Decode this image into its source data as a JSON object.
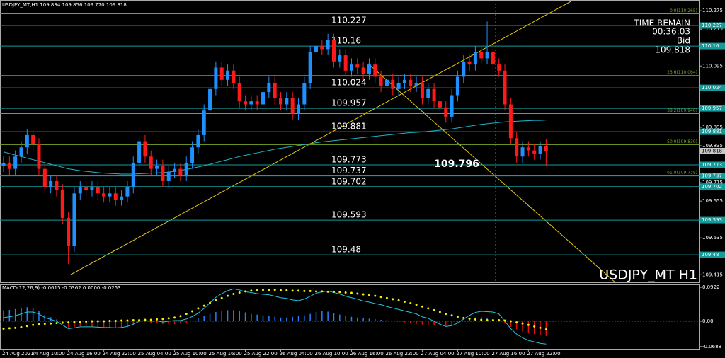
{
  "chart_data": {
    "type": "candlestick",
    "header": "USDJPY_MT,H1  109.834 109.856 109.770 109.818",
    "timer_title": "TIME REMAIN",
    "timer": "00:36:03",
    "bid_title": "Bid",
    "bid": 109.818,
    "symbol_label": "USDJPY_MT H1",
    "price_label": 109.796,
    "up_color": "#1e90ff",
    "down_color": "#ff1a1a",
    "categories": [
      "24 Aug 2021",
      null,
      null,
      null,
      null,
      "24 Aug 10:00",
      null,
      null,
      null,
      null,
      null,
      "24 Aug 16:00",
      null,
      null,
      null,
      null,
      null,
      "24 Aug 22:00",
      null,
      null,
      null,
      null,
      null,
      "25 Aug 04:00",
      null,
      null,
      null,
      null,
      null,
      "25 Aug 10:00",
      null,
      null,
      null,
      null,
      null,
      "25 Aug 16:00",
      null,
      null,
      null,
      null,
      null,
      "25 Aug 22:00",
      null,
      null,
      null,
      null,
      null,
      "26 Aug 04:00",
      null,
      null,
      null,
      null,
      null,
      "26 Aug 10:00",
      null,
      null,
      null,
      null,
      null,
      "26 Aug 16:00",
      null,
      null,
      null,
      null,
      null,
      "26 Aug 22:00",
      null,
      null,
      null,
      null,
      null,
      "27 Aug 04:00",
      null,
      null,
      null,
      null,
      null,
      "27 Aug 10:00",
      null,
      null,
      null,
      null,
      null,
      "27 Aug 16:00",
      null,
      null,
      null,
      null,
      null,
      "27 Aug 22:00",
      null,
      null,
      null
    ],
    "open": [
      109.77,
      109.78,
      109.76,
      109.8,
      109.83,
      109.87,
      109.84,
      109.76,
      109.7,
      109.72,
      109.69,
      109.6,
      109.51,
      109.68,
      109.7,
      109.69,
      109.7,
      109.68,
      109.67,
      109.68,
      109.66,
      109.67,
      109.7,
      109.78,
      109.85,
      109.8,
      109.76,
      109.77,
      109.72,
      109.75,
      109.76,
      109.74,
      109.78,
      109.83,
      109.87,
      109.95,
      110.02,
      110.09,
      110.05,
      110.08,
      110.04,
      109.98,
      109.97,
      109.98,
      109.97,
      110.01,
      110.04,
      109.99,
      109.97,
      109.99,
      109.94,
      109.97,
      110.04,
      110.14,
      110.16,
      110.15,
      110.18,
      110.11,
      110.13,
      110.08,
      110.1,
      110.09,
      110.07,
      110.1,
      110.06,
      110.03,
      110.05,
      110.02,
      110.04,
      110.05,
      110.03,
      110.04,
      109.99,
      110.02,
      109.98,
      109.96,
      109.93,
      110.0,
      110.06,
      110.11,
      110.1,
      110.14,
      110.12,
      110.14,
      110.1,
      110.08,
      109.97,
      109.86,
      109.8,
      109.83,
      109.82,
      109.81,
      109.834
    ],
    "high": [
      109.8,
      109.8,
      109.82,
      109.85,
      109.89,
      109.89,
      109.86,
      109.78,
      109.74,
      109.74,
      109.71,
      109.62,
      109.7,
      109.72,
      109.72,
      109.72,
      109.72,
      109.7,
      109.7,
      109.7,
      109.69,
      109.72,
      109.8,
      109.87,
      109.87,
      109.82,
      109.79,
      109.79,
      109.77,
      109.78,
      109.78,
      109.8,
      109.85,
      109.89,
      109.97,
      110.04,
      110.11,
      110.11,
      110.1,
      110.1,
      110.06,
      110.0,
      110.0,
      110.0,
      110.03,
      110.06,
      110.06,
      110.01,
      110.01,
      110.01,
      109.99,
      110.06,
      110.16,
      110.18,
      110.18,
      110.2,
      110.2,
      110.15,
      110.15,
      110.12,
      110.12,
      110.11,
      110.12,
      110.12,
      110.08,
      110.07,
      110.07,
      110.06,
      110.07,
      110.07,
      110.06,
      110.06,
      110.04,
      110.04,
      110.0,
      109.98,
      110.02,
      110.08,
      110.13,
      110.13,
      110.16,
      110.16,
      110.24,
      110.16,
      110.12,
      110.1,
      109.99,
      109.88,
      109.85,
      109.85,
      109.84,
      109.85,
      109.856
    ],
    "low": [
      109.75,
      109.74,
      109.74,
      109.78,
      109.81,
      109.82,
      109.74,
      109.68,
      109.68,
      109.67,
      109.58,
      109.45,
      109.49,
      109.66,
      109.67,
      109.67,
      109.66,
      109.65,
      109.65,
      109.64,
      109.64,
      109.65,
      109.68,
      109.76,
      109.78,
      109.74,
      109.74,
      109.7,
      109.7,
      109.73,
      109.72,
      109.72,
      109.76,
      109.81,
      109.85,
      109.93,
      110.0,
      110.03,
      110.03,
      110.02,
      109.96,
      109.95,
      109.95,
      109.95,
      109.95,
      109.99,
      109.97,
      109.95,
      109.95,
      109.92,
      109.92,
      109.95,
      110.02,
      110.12,
      110.13,
      110.13,
      110.09,
      110.09,
      110.06,
      110.06,
      110.07,
      110.05,
      110.05,
      110.04,
      110.01,
      110.01,
      110.0,
      110.0,
      110.02,
      110.01,
      110.01,
      109.97,
      109.97,
      109.96,
      109.94,
      109.91,
      109.91,
      109.98,
      110.04,
      110.08,
      110.08,
      110.1,
      110.1,
      110.08,
      110.06,
      109.95,
      109.84,
      109.78,
      109.78,
      109.8,
      109.79,
      109.79,
      109.77
    ],
    "close": [
      109.78,
      109.76,
      109.8,
      109.83,
      109.87,
      109.84,
      109.76,
      109.7,
      109.72,
      109.69,
      109.6,
      109.51,
      109.68,
      109.7,
      109.69,
      109.7,
      109.68,
      109.67,
      109.68,
      109.66,
      109.67,
      109.7,
      109.78,
      109.85,
      109.8,
      109.76,
      109.77,
      109.72,
      109.75,
      109.76,
      109.74,
      109.78,
      109.83,
      109.87,
      109.95,
      110.02,
      110.09,
      110.05,
      110.08,
      110.04,
      109.98,
      109.97,
      109.98,
      109.97,
      110.01,
      110.04,
      109.99,
      109.97,
      109.99,
      109.94,
      109.97,
      110.04,
      110.14,
      110.16,
      110.15,
      110.18,
      110.11,
      110.13,
      110.08,
      110.1,
      110.09,
      110.07,
      110.1,
      110.06,
      110.03,
      110.05,
      110.02,
      110.04,
      110.05,
      110.03,
      110.04,
      109.99,
      110.02,
      109.98,
      109.96,
      109.93,
      110.0,
      110.06,
      110.11,
      110.1,
      110.14,
      110.12,
      110.14,
      110.1,
      110.08,
      109.97,
      109.86,
      109.8,
      109.83,
      109.82,
      109.81,
      109.834,
      109.818
    ],
    "ma": {
      "color": "#1fb5c9",
      "values": [
        109.815,
        109.81,
        109.805,
        109.8,
        109.795,
        109.79,
        109.785,
        109.78,
        109.775,
        109.77,
        109.765,
        109.76,
        109.757,
        109.754,
        109.752,
        109.75,
        109.748,
        109.746,
        109.745,
        109.744,
        109.743,
        109.743,
        109.743,
        109.744,
        109.745,
        109.746,
        109.747,
        109.748,
        109.75,
        109.752,
        109.755,
        109.758,
        109.762,
        109.766,
        109.77,
        109.775,
        109.78,
        109.785,
        109.79,
        109.795,
        109.8,
        109.804,
        109.808,
        109.812,
        109.816,
        109.82,
        109.824,
        109.827,
        109.83,
        109.833,
        109.836,
        109.839,
        109.842,
        109.845,
        109.848,
        109.85,
        109.852,
        109.854,
        109.856,
        109.858,
        109.86,
        109.862,
        109.864,
        109.866,
        109.868,
        109.87,
        109.872,
        109.874,
        109.876,
        109.878,
        109.879,
        109.88,
        109.882,
        109.884,
        109.886,
        109.888,
        109.89,
        109.893,
        109.896,
        109.899,
        109.902,
        109.905,
        109.907,
        109.909,
        109.911,
        109.913,
        109.914,
        109.915,
        109.916,
        109.917,
        109.918,
        109.918,
        109.919
      ]
    },
    "ylim": [
      109.388,
      110.31
    ],
    "yticks": [
      110.275,
      110.215,
      110.155,
      110.095,
      109.895,
      109.835,
      109.715,
      109.655,
      109.535,
      109.415
    ],
    "level_color": "#169a9a",
    "levels": [
      110.227,
      110.16,
      110.024,
      109.957,
      109.881,
      109.773,
      109.737,
      109.702,
      109.593,
      109.48
    ],
    "fibo_color": "#7aa32a",
    "fibo": [
      {
        "value": 110.265,
        "label": "0.0(110.265)"
      },
      {
        "value": 110.064,
        "label": "23.6(110.064)"
      },
      {
        "value": 109.94,
        "label": "38.2(109.940)"
      },
      {
        "value": 109.839,
        "label": "50.0(109.839)"
      },
      {
        "value": 109.738,
        "label": "61.8(109.738)"
      }
    ],
    "macd": {
      "title": "MACD(12,26,9) -0.0615 -0.0362 0.0000 -0.0253",
      "ylim": [
        -0.0768,
        0.1
      ],
      "yticks": [
        0.0922,
        {
          "value": 0,
          "label": "0.00"
        },
        -0.0688
      ],
      "histogram": {
        "up_color": "#2a7fff",
        "down_color": "#e01010",
        "values": [
          0.03,
          0.031,
          0.033,
          0.036,
          0.038,
          0.035,
          0.028,
          0.017,
          0.011,
          0.005,
          -0.006,
          -0.017,
          -0.016,
          -0.013,
          -0.014,
          -0.015,
          -0.016,
          -0.017,
          -0.018,
          -0.019,
          -0.019,
          -0.016,
          -0.011,
          -0.003,
          -0.002,
          -0.004,
          -0.004,
          -0.008,
          -0.008,
          -0.008,
          -0.006,
          -0.004,
          0.002,
          0.008,
          0.014,
          0.02,
          0.025,
          0.028,
          0.03,
          0.03,
          0.027,
          0.024,
          0.02,
          0.018,
          0.016,
          0.015,
          0.012,
          0.01,
          0.01,
          0.012,
          0.014,
          0.016,
          0.02,
          0.025,
          0.027,
          0.026,
          0.022,
          0.018,
          0.014,
          0.012,
          0.01,
          0.008,
          0.007,
          0.006,
          0.004,
          0.003,
          0.002,
          0.0,
          -0.003,
          -0.005,
          -0.007,
          -0.009,
          -0.01,
          -0.011,
          -0.012,
          -0.012,
          -0.01,
          -0.006,
          0.002,
          0.006,
          0.01,
          0.012,
          0.01,
          0.006,
          0.002,
          -0.006,
          -0.015,
          -0.022,
          -0.028,
          -0.032,
          -0.035,
          -0.038,
          -0.04
        ]
      },
      "main": {
        "color": "#1fc8e0",
        "values": [
          0.01,
          0.012,
          0.015,
          0.02,
          0.025,
          0.025,
          0.02,
          0.01,
          0.005,
          0.0,
          -0.01,
          -0.02,
          -0.018,
          -0.015,
          -0.015,
          -0.015,
          -0.016,
          -0.017,
          -0.017,
          -0.018,
          -0.017,
          -0.014,
          -0.008,
          0.0,
          0.002,
          0.0,
          0.001,
          -0.002,
          0.0,
          0.002,
          0.002,
          0.006,
          0.013,
          0.022,
          0.035,
          0.05,
          0.065,
          0.075,
          0.083,
          0.088,
          0.085,
          0.08,
          0.078,
          0.075,
          0.073,
          0.072,
          0.068,
          0.064,
          0.062,
          0.058,
          0.056,
          0.06,
          0.068,
          0.076,
          0.08,
          0.082,
          0.078,
          0.074,
          0.068,
          0.064,
          0.06,
          0.055,
          0.052,
          0.048,
          0.045,
          0.04,
          0.036,
          0.032,
          0.028,
          0.024,
          0.02,
          0.012,
          0.008,
          0.0,
          -0.008,
          -0.014,
          -0.012,
          -0.005,
          0.006,
          0.016,
          0.024,
          0.027,
          0.026,
          0.025,
          0.02,
          0.0,
          -0.02,
          -0.035,
          -0.045,
          -0.052,
          -0.056,
          -0.06,
          -0.062
        ]
      },
      "signal": {
        "color": "#f0f000",
        "values": [
          -0.02,
          -0.019,
          -0.018,
          -0.016,
          -0.013,
          -0.01,
          -0.008,
          -0.007,
          -0.006,
          -0.005,
          -0.004,
          -0.003,
          -0.002,
          -0.002,
          -0.001,
          0.0,
          0.0,
          0.0,
          0.001,
          0.001,
          0.002,
          0.002,
          0.003,
          0.003,
          0.004,
          0.004,
          0.005,
          0.006,
          0.008,
          0.01,
          0.014,
          0.02,
          0.027,
          0.035,
          0.042,
          0.05,
          0.057,
          0.063,
          0.069,
          0.074,
          0.078,
          0.081,
          0.083,
          0.084,
          0.085,
          0.085,
          0.085,
          0.084,
          0.084,
          0.083,
          0.083,
          0.082,
          0.082,
          0.081,
          0.081,
          0.08,
          0.08,
          0.079,
          0.078,
          0.077,
          0.075,
          0.073,
          0.071,
          0.069,
          0.066,
          0.063,
          0.06,
          0.057,
          0.053,
          0.049,
          0.045,
          0.04,
          0.035,
          0.03,
          0.025,
          0.02,
          0.016,
          0.012,
          0.009,
          0.007,
          0.005,
          0.004,
          0.003,
          0.003,
          0.003,
          0.002,
          0.0,
          -0.003,
          -0.006,
          -0.01,
          -0.014,
          -0.018,
          -0.022
        ]
      }
    }
  }
}
